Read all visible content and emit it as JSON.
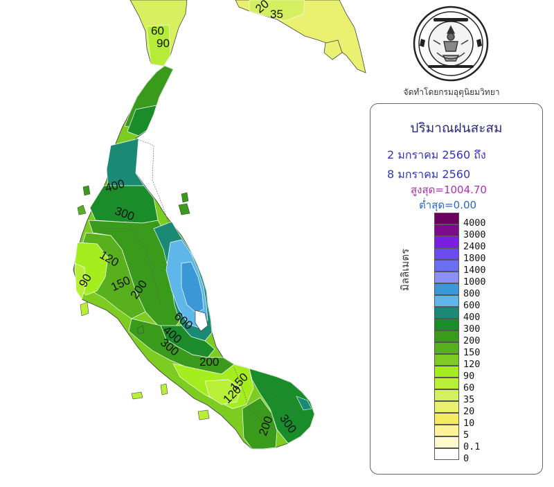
{
  "map": {
    "region": "Southern Thailand",
    "contour_labels": [
      "20",
      "35",
      "60",
      "90",
      "400",
      "300",
      "120",
      "90",
      "150",
      "200",
      "600",
      "400",
      "300",
      "200",
      "150",
      "120",
      "200",
      "300"
    ]
  },
  "credit": "จัดทำโดยกรมอุตุนิยมวิทยา",
  "seal": {
    "thai_text": "กรมอุตุนิยมวิทยา",
    "english_text": "METEOROLOGICAL DEPARTMENT"
  },
  "legend": {
    "title": "ปริมาณฝนสะสม",
    "date_from": "2 มกราคม 2560  ถึง",
    "date_to": "8 มกราคม 2560",
    "max": "สูงสุด=1004.70",
    "min": "ต่ำสุด=0.00",
    "unit": "มิลลิเมตร",
    "levels": [
      {
        "label": "4000",
        "color": "#6a0060"
      },
      {
        "label": "3000",
        "color": "#7e0a8c"
      },
      {
        "label": "2400",
        "color": "#7a1fe0"
      },
      {
        "label": "1800",
        "color": "#6a4cf0"
      },
      {
        "label": "1400",
        "color": "#6a6ef2"
      },
      {
        "label": "1000",
        "color": "#8a90f4"
      },
      {
        "label": "800",
        "color": "#3b97d6"
      },
      {
        "label": "600",
        "color": "#5fb6e8"
      },
      {
        "label": "400",
        "color": "#1a8a75"
      },
      {
        "label": "300",
        "color": "#1a8c2a"
      },
      {
        "label": "200",
        "color": "#3a9a1c"
      },
      {
        "label": "150",
        "color": "#58b01e"
      },
      {
        "label": "120",
        "color": "#7ccc22"
      },
      {
        "label": "90",
        "color": "#a4ee20"
      },
      {
        "label": "60",
        "color": "#b8f038"
      },
      {
        "label": "35",
        "color": "#d4f060"
      },
      {
        "label": "20",
        "color": "#eaf070"
      },
      {
        "label": "10",
        "color": "#f4ec60"
      },
      {
        "label": "5",
        "color": "#fff29a"
      },
      {
        "label": "0.1",
        "color": "#fffacc"
      },
      {
        "label": "0",
        "color": "#ffffff"
      }
    ]
  }
}
